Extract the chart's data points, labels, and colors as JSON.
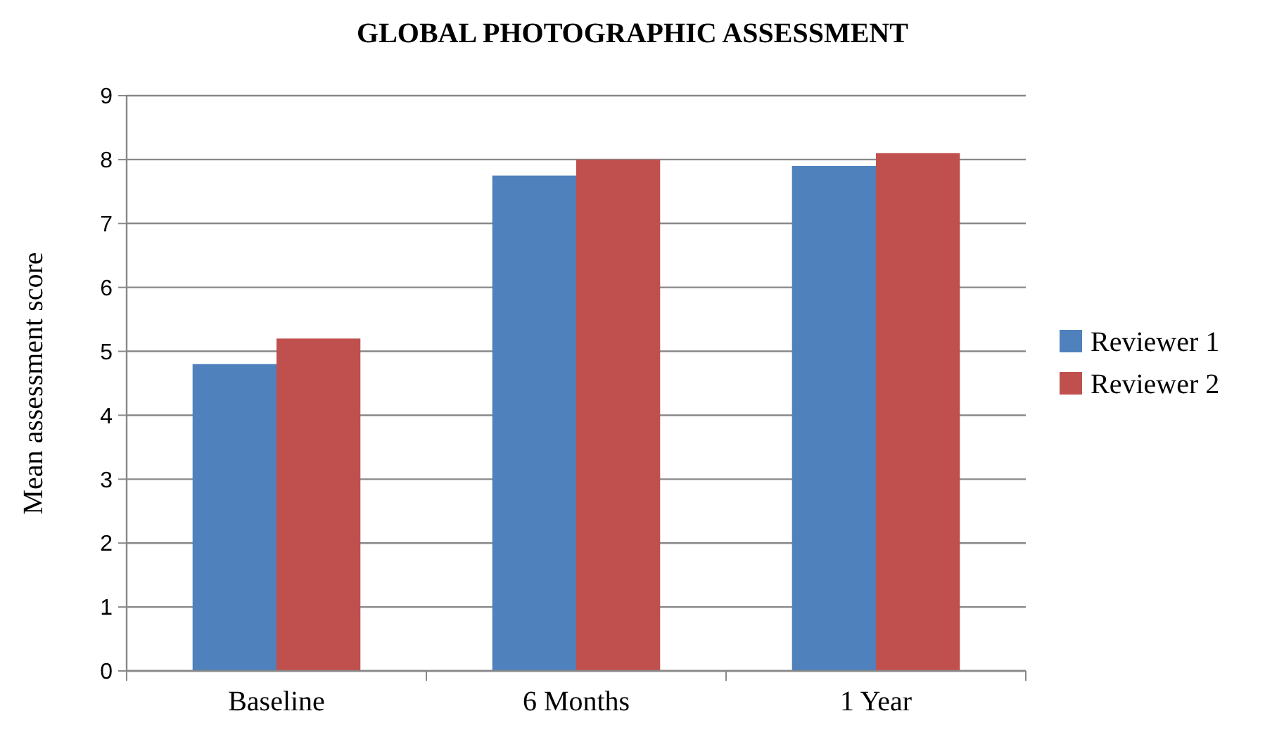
{
  "chart_data": {
    "type": "bar",
    "title": "GLOBAL PHOTOGRAPHIC ASSESSMENT",
    "ylabel": "Mean assessment score",
    "categories": [
      "Baseline",
      "6 Months",
      "1 Year"
    ],
    "series": [
      {
        "name": "Reviewer 1",
        "color": "#4f81bd",
        "values": [
          4.8,
          7.75,
          7.9
        ]
      },
      {
        "name": "Reviewer 2",
        "color": "#c0504d",
        "values": [
          5.2,
          8.0,
          8.1
        ]
      }
    ],
    "ylim": [
      0,
      9
    ],
    "yticks": [
      0,
      1,
      2,
      3,
      4,
      5,
      6,
      7,
      8,
      9
    ],
    "grid": "y",
    "legend": "right"
  }
}
